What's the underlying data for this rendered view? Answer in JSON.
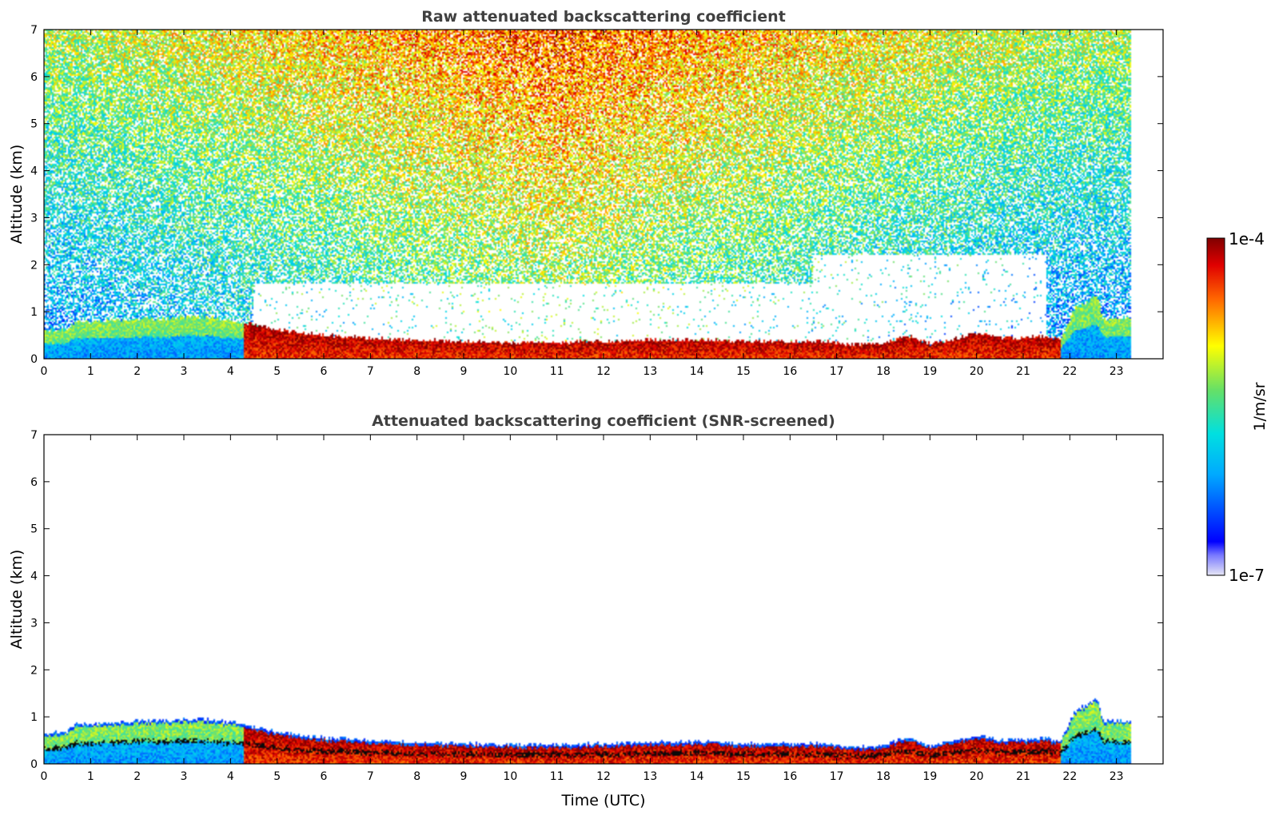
{
  "chart_data": [
    {
      "type": "heatmap",
      "title": "Raw attenuated backscattering coefficient",
      "xlabel": "",
      "ylabel": "Altitude (km)",
      "xlim": [
        0,
        24
      ],
      "ylim": [
        0,
        7
      ],
      "xticks": [
        "0",
        "1",
        "2",
        "3",
        "4",
        "5",
        "6",
        "7",
        "8",
        "9",
        "10",
        "11",
        "12",
        "13",
        "14",
        "15",
        "16",
        "17",
        "18",
        "19",
        "20",
        "21",
        "22",
        "23"
      ],
      "yticks": [
        "0",
        "1",
        "2",
        "3",
        "4",
        "5",
        "6",
        "7"
      ],
      "data_extent_hours": [
        0,
        23.3
      ],
      "screened": false
    },
    {
      "type": "heatmap",
      "title": "Attenuated backscattering coefficient (SNR-screened)",
      "xlabel": "Time (UTC)",
      "ylabel": "Altitude (km)",
      "xlim": [
        0,
        24
      ],
      "ylim": [
        0,
        7
      ],
      "xticks": [
        "0",
        "1",
        "2",
        "3",
        "4",
        "5",
        "6",
        "7",
        "8",
        "9",
        "10",
        "11",
        "12",
        "13",
        "14",
        "15",
        "16",
        "17",
        "18",
        "19",
        "20",
        "21",
        "22",
        "23"
      ],
      "yticks": [
        "0",
        "1",
        "2",
        "3",
        "4",
        "5",
        "6",
        "7"
      ],
      "data_extent_hours": [
        0,
        23.3
      ],
      "screened": true
    }
  ],
  "colorbar": {
    "max_label": "1e-4",
    "min_label": "1e-7",
    "unit_label": "1/m/sr",
    "scale": "log",
    "colormap": "jet"
  },
  "boundary_layer": {
    "hours": [
      0,
      0.5,
      0.7,
      1,
      1.5,
      2,
      2.5,
      3,
      3.3,
      3.6,
      4,
      4.3,
      4.6,
      5,
      5.5,
      6,
      6.5,
      7,
      8,
      9,
      10,
      11,
      12,
      13,
      14,
      15,
      16,
      16.8,
      17.2,
      18,
      18.5,
      19,
      19.5,
      20,
      20.5,
      21,
      21.5,
      21.8,
      22.1,
      22.6,
      22.7,
      23,
      23.3
    ],
    "top_km": [
      0.6,
      0.62,
      0.8,
      0.8,
      0.82,
      0.85,
      0.85,
      0.88,
      0.9,
      0.87,
      0.82,
      0.78,
      0.7,
      0.62,
      0.55,
      0.5,
      0.47,
      0.44,
      0.4,
      0.37,
      0.35,
      0.35,
      0.37,
      0.4,
      0.4,
      0.38,
      0.36,
      0.38,
      0.3,
      0.32,
      0.5,
      0.32,
      0.42,
      0.55,
      0.45,
      0.45,
      0.48,
      0.4,
      1.05,
      1.35,
      0.85,
      0.85,
      0.85
    ]
  }
}
